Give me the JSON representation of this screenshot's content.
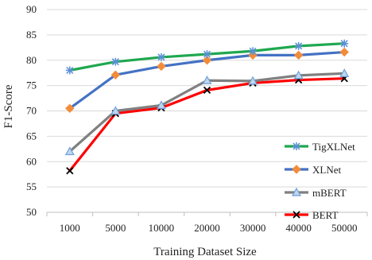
{
  "chart_data": {
    "type": "line",
    "title": "",
    "xlabel": "Training Dataset Size",
    "ylabel": "F1-Score",
    "categories": [
      "1000",
      "5000",
      "10000",
      "20000",
      "30000",
      "40000",
      "50000"
    ],
    "ylim": [
      50,
      90
    ],
    "yticks": [
      "50",
      "55",
      "60",
      "65",
      "70",
      "75",
      "80",
      "85",
      "90"
    ],
    "grid": "horizontal",
    "legend": "right",
    "series": [
      {
        "name": "TigXLNet",
        "values": [
          78.0,
          79.7,
          80.6,
          81.2,
          81.8,
          82.8,
          83.3
        ],
        "color": "#1fa84f",
        "marker": "asterisk"
      },
      {
        "name": "XLNet",
        "values": [
          70.5,
          77.1,
          78.8,
          80.0,
          81.0,
          81.0,
          81.6
        ],
        "color": "#4472c4",
        "marker": "diamond"
      },
      {
        "name": "mBERT",
        "values": [
          62.0,
          70.0,
          71.1,
          76.0,
          75.9,
          77.0,
          77.4
        ],
        "color": "#808080",
        "marker": "triangle"
      },
      {
        "name": "BERT",
        "values": [
          58.2,
          69.5,
          70.6,
          74.1,
          75.5,
          76.1,
          76.4
        ],
        "color": "#ff0000",
        "marker": "x"
      }
    ]
  }
}
